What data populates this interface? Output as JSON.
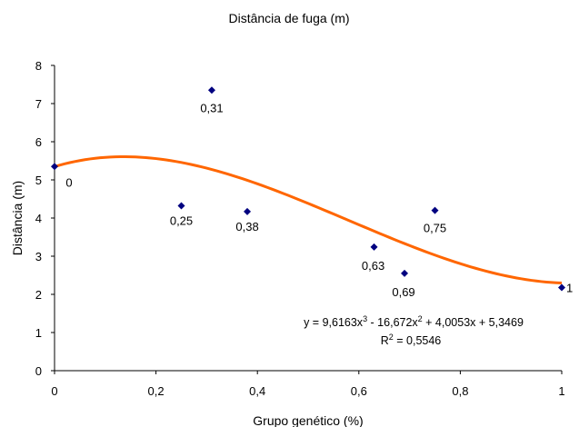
{
  "chart_data": {
    "type": "scatter",
    "title": "Distância de fuga (m)",
    "xlabel": "Grupo genético (%)",
    "ylabel": "Distância (m)",
    "xlim": [
      0,
      1
    ],
    "ylim": [
      0,
      8
    ],
    "x_ticks": [
      "0",
      "0,2",
      "0,4",
      "0,6",
      "0,8",
      "1"
    ],
    "y_ticks": [
      "0",
      "1",
      "2",
      "3",
      "4",
      "5",
      "6",
      "7",
      "8"
    ],
    "grid": false,
    "points": [
      {
        "x": 0,
        "y": 5.35,
        "label": "0"
      },
      {
        "x": 0.25,
        "y": 4.32,
        "label": "0,25"
      },
      {
        "x": 0.31,
        "y": 7.35,
        "label": "0,31"
      },
      {
        "x": 0.38,
        "y": 4.17,
        "label": "0,38"
      },
      {
        "x": 0.63,
        "y": 3.24,
        "label": "0,63"
      },
      {
        "x": 0.69,
        "y": 2.55,
        "label": "0,69"
      },
      {
        "x": 0.75,
        "y": 4.2,
        "label": "0,75"
      },
      {
        "x": 1,
        "y": 2.18,
        "label": "1"
      }
    ],
    "trendline": {
      "type": "polynomial",
      "coefficients": [
        9.6163,
        -16.672,
        4.0053,
        5.3469
      ],
      "equation_parts": [
        "y = 9,6163x",
        "3",
        " - 16,672x",
        "2",
        " + 4,0053x + 5,3469"
      ],
      "r2_parts": [
        "R",
        "2",
        " = 0,5546"
      ]
    },
    "colors": {
      "marker": "#000080",
      "trendline": "#FF6600",
      "axis": "#000000"
    }
  }
}
